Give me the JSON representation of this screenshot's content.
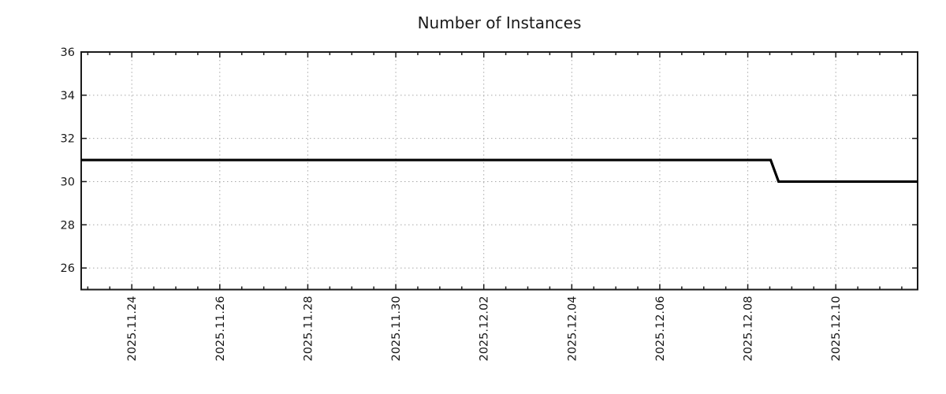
{
  "chart_data": {
    "type": "line",
    "title": "Number of Instances",
    "x_axis": {
      "epoch": "days since 2025-11-24 00:00",
      "tick_labels": [
        "2025.11.24",
        "2025.11.26",
        "2025.11.28",
        "2025.11.30",
        "2025.12.02",
        "2025.12.04",
        "2025.12.06",
        "2025.12.08",
        "2025.12.10"
      ],
      "tick_days": [
        0,
        2,
        4,
        6,
        8,
        10,
        12,
        14,
        16
      ],
      "minor_tick_step_days": 0.5,
      "xlim_days": [
        -1.15,
        17.86
      ],
      "label_rotation_deg": -90
    },
    "y_axis": {
      "tick_labels": [
        "26",
        "28",
        "30",
        "32",
        "34",
        "36"
      ],
      "tick_values": [
        26,
        28,
        30,
        32,
        34,
        36
      ],
      "ylim": [
        25,
        36
      ]
    },
    "series": [
      {
        "name": "instances",
        "points": [
          {
            "day": -1.15,
            "date": "2025-11-22 ~20:00",
            "value": 31
          },
          {
            "day": 14.52,
            "date": "2025-12-08 ~12:30",
            "value": 31
          },
          {
            "day": 14.7,
            "date": "2025-12-08 ~17:00",
            "value": 30
          },
          {
            "day": 17.86,
            "date": "2025-12-11 ~21:00",
            "value": 30
          }
        ]
      }
    ],
    "grid": {
      "show": true,
      "style": "dotted",
      "color": "#a8a8a8"
    },
    "legend": {
      "show": false
    },
    "colors": {
      "line": "#000000",
      "border": "#1a1a1a",
      "text": "#1a1a1a",
      "grid": "#a8a8a8",
      "background": "#ffffff"
    }
  }
}
